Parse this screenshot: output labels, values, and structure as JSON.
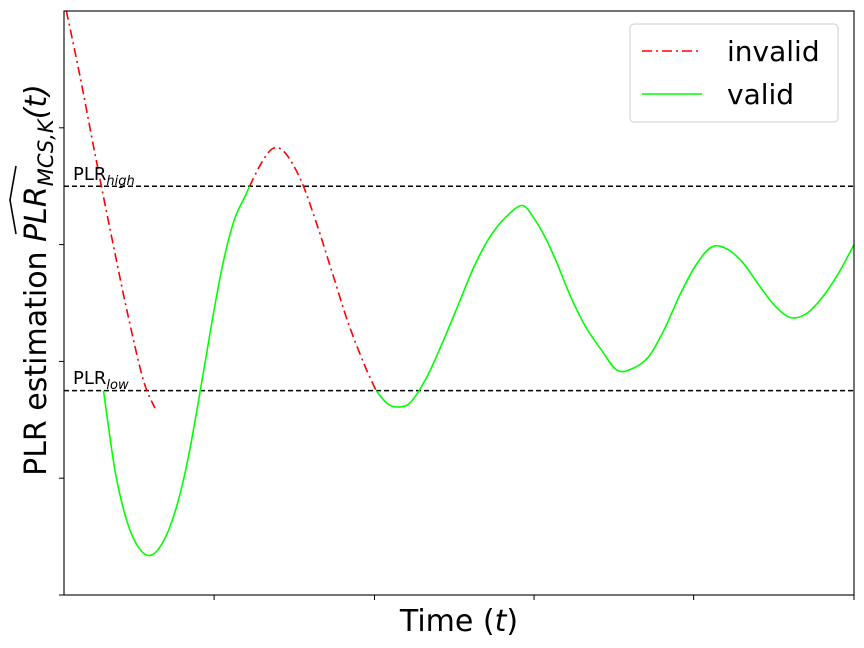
{
  "chart_data": {
    "type": "line",
    "title": "",
    "xlabel_main": "Time (",
    "xlabel_var": "t",
    "xlabel_close": ")",
    "ylabel_prefix": "PLR estimation ",
    "ylabel_main": "PLR",
    "ylabel_sub": "MCS,K",
    "ylabel_tail": "(t)",
    "xlim": [
      0,
      100
    ],
    "ylim": [
      0,
      100
    ],
    "x_ticks": [
      19,
      39.3,
      59.5,
      79.7,
      100
    ],
    "y_ticks": [
      0,
      20,
      40,
      60,
      80
    ],
    "tick_labels_shown": false,
    "grid": false,
    "legend": {
      "position": "top-right",
      "entries": [
        {
          "label": "invalid",
          "style": "dash-dot",
          "color": "#ff0000"
        },
        {
          "label": "valid",
          "style": "solid",
          "color": "#00ff00"
        }
      ]
    },
    "thresholds": [
      {
        "name": "high",
        "label_main": "PLR",
        "label_sub": "high",
        "y": 70,
        "style": "dashed",
        "color": "#000000"
      },
      {
        "name": "low",
        "label_main": "PLR",
        "label_sub": "low",
        "y": 35,
        "style": "dashed",
        "color": "#000000"
      }
    ],
    "series": [
      {
        "name": "invalid",
        "color": "#ff0000",
        "style": "dash-dot",
        "segments": [
          {
            "x": [
              0.3,
              2.0,
              4.0,
              6.0,
              8.0,
              10.0,
              11.5
            ],
            "y": [
              100,
              89,
              75,
              61.5,
              48.5,
              37,
              32
            ]
          },
          {
            "x": [
              23.5,
              25.0,
              26.5,
              28.0,
              30.0,
              32.0,
              34.0,
              36.0,
              38.0,
              39.5
            ],
            "y": [
              70,
              74,
              76.5,
              75.7,
              71,
              63.5,
              55,
              46.5,
              39.5,
              35
            ]
          }
        ]
      },
      {
        "name": "valid",
        "color": "#00ff00",
        "style": "solid",
        "segments": [
          {
            "x": [
              5.0,
              6.5,
              8.0,
              9.5,
              11.0,
              12.5,
              14.0,
              15.5,
              17.0,
              18.5,
              20.0,
              21.5,
              23.0,
              23.5
            ],
            "y": [
              35,
              21,
              12.5,
              8,
              6.8,
              9,
              14,
              22,
              33,
              45,
              56,
              64,
              68.5,
              70
            ]
          },
          {
            "x": [
              39.5,
              41.0,
              42.5,
              44.0,
              46.0,
              48.0,
              50.0,
              52.0,
              54.0,
              56.0,
              58.0,
              59.5,
              61.0,
              62.5,
              64.0,
              66.0,
              68.0,
              70.0,
              72.0,
              74.0,
              76.0,
              78.0,
              80.0,
              82.0,
              84.0,
              86.0,
              88.0,
              90.0,
              92.0,
              94.0,
              96.0,
              98.0,
              100.0
            ],
            "y": [
              35,
              32.7,
              32.2,
              33.2,
              37.5,
              43.5,
              50,
              56.5,
              61.5,
              64.8,
              66.7,
              64.5,
              61,
              56.5,
              51.5,
              46,
              42,
              38.5,
              38.8,
              40.8,
              45.5,
              51.5,
              56.5,
              59.6,
              59.2,
              56.8,
              53,
              49.5,
              47.5,
              48.2,
              51,
              55,
              60
            ]
          }
        ]
      }
    ]
  }
}
